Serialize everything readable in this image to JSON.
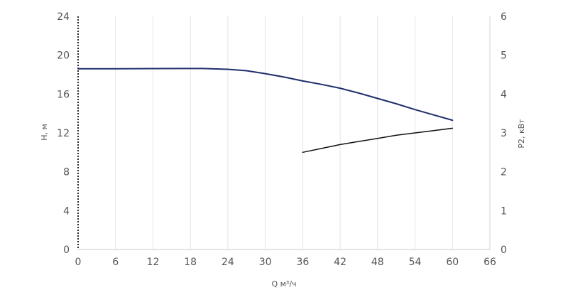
{
  "chart_data": {
    "type": "line",
    "title": "",
    "xlabel": "Q м³/ч",
    "ylabel": "H, м",
    "y2label": "P2, кВт",
    "xlim": [
      0,
      66
    ],
    "ylim": [
      0,
      24
    ],
    "y2lim": [
      0,
      6
    ],
    "x_ticks": [
      "0",
      "6",
      "12",
      "18",
      "24",
      "30",
      "36",
      "42",
      "48",
      "54",
      "60",
      "66"
    ],
    "y_ticks": [
      "0",
      "4",
      "8",
      "12",
      "16",
      "20",
      "24"
    ],
    "y2_ticks": [
      "0",
      "1",
      "2",
      "3",
      "4",
      "5",
      "6"
    ],
    "grid": "vertical",
    "series": [
      {
        "axis": "left",
        "color": "#1f2d6b",
        "x": [
          0,
          6,
          12,
          18,
          20,
          24,
          27,
          30,
          33,
          36,
          39,
          42,
          45,
          48,
          51,
          54,
          57,
          60
        ],
        "y": [
          18.6,
          18.6,
          18.62,
          18.63,
          18.63,
          18.55,
          18.4,
          18.1,
          17.75,
          17.35,
          17.0,
          16.6,
          16.1,
          15.55,
          15.0,
          14.4,
          13.85,
          13.3
        ]
      },
      {
        "axis": "right",
        "color": "#111111",
        "x": [
          36,
          39,
          42,
          45,
          48,
          51,
          54,
          57,
          60
        ],
        "y": [
          2.5,
          2.6,
          2.7,
          2.78,
          2.86,
          2.94,
          3.0,
          3.06,
          3.12
        ]
      }
    ]
  }
}
